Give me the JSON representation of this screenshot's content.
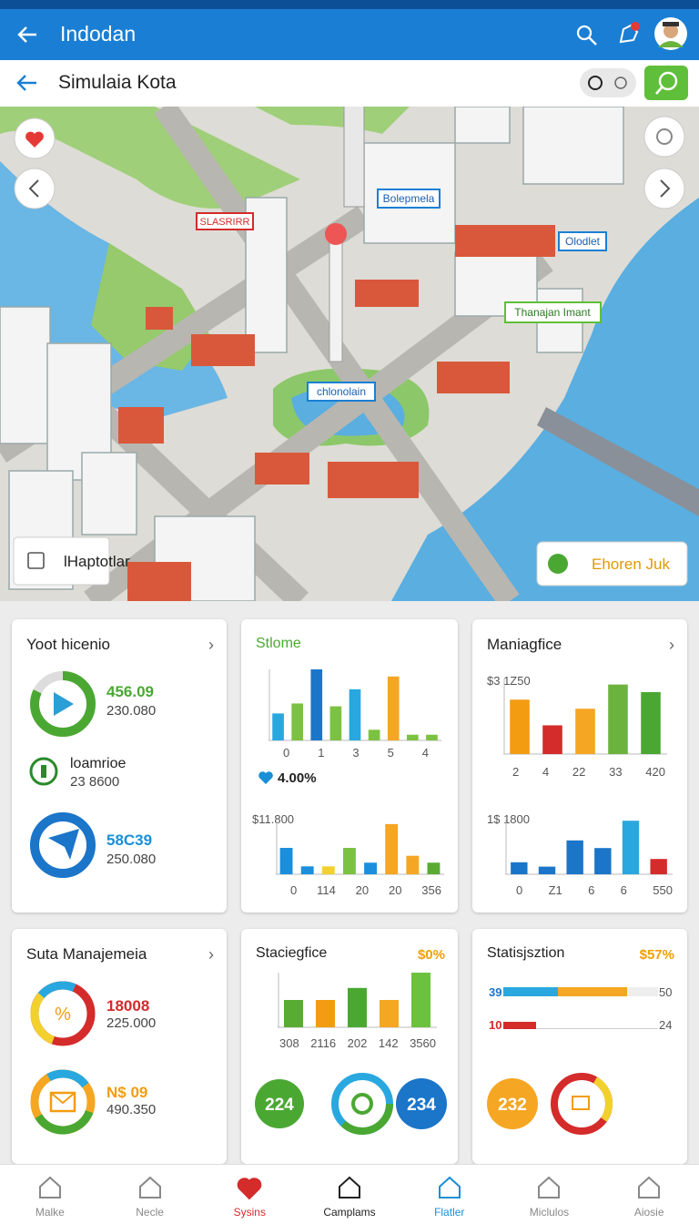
{
  "app_bar": {
    "title": "Indodan"
  },
  "header": {
    "title": "Simulaia Kota"
  },
  "map": {
    "labels": [
      "Bolepmela",
      "Olodlet",
      "SLASRIRR",
      "Thanajan Imant",
      "chlonolain"
    ],
    "left_button": "lHaptotlar",
    "right_button": "Ehoren Juk"
  },
  "cards": [
    {
      "title": "Yoot hicenio",
      "items": [
        {
          "value": "456.09",
          "sub": "230.080"
        },
        {
          "value": "loamrioe",
          "sub": "23 8600"
        },
        {
          "value": "58C39",
          "sub": "250.080"
        }
      ]
    },
    {
      "title": "Stlome",
      "stat": "4.00%",
      "charts": [
        {
          "bars": [
            {
              "value": 38,
              "color": "#29a8e0"
            },
            {
              "value": 52,
              "color": "#7cc242"
            },
            {
              "value": 100,
              "color": "#1b75c9"
            },
            {
              "value": 48,
              "color": "#7cc242"
            },
            {
              "value": 72,
              "color": "#29a8e0"
            },
            {
              "value": 15,
              "color": "#7cc242"
            },
            {
              "value": 90,
              "color": "#f5a623"
            },
            {
              "value": 8,
              "color": "#7cc242"
            },
            {
              "value": 8,
              "color": "#7cc242"
            }
          ],
          "labels": [
            "0",
            "1",
            "3",
            "5",
            "4"
          ]
        },
        {
          "caption": "$11.800",
          "bars": [
            {
              "value": 50,
              "color": "#1b8fdc"
            },
            {
              "value": 15,
              "color": "#1b8fdc"
            },
            {
              "value": 15,
              "color": "#f2d12e"
            },
            {
              "value": 50,
              "color": "#7cc242"
            },
            {
              "value": 22,
              "color": "#1b8fdc"
            },
            {
              "value": 95,
              "color": "#f5a623"
            },
            {
              "value": 35,
              "color": "#f5a623"
            },
            {
              "value": 22,
              "color": "#5aab32"
            }
          ],
          "labels": [
            "0",
            "114",
            "20",
            "20",
            "356"
          ]
        }
      ]
    },
    {
      "title": "Maniagfice",
      "charts": [
        {
          "caption": "$3 1Z50",
          "bars": [
            {
              "value": 72,
              "color": "#f39c12"
            },
            {
              "value": 38,
              "color": "#d42b2b"
            },
            {
              "value": 60,
              "color": "#f5a623"
            },
            {
              "value": 92,
              "color": "#6cb33e"
            },
            {
              "value": 82,
              "color": "#4aa832"
            }
          ],
          "labels": [
            "2",
            "4",
            "22",
            "33",
            "420"
          ]
        },
        {
          "caption": "1$ 1800",
          "bars": [
            {
              "value": 22,
              "color": "#1b75c9"
            },
            {
              "value": 14,
              "color": "#1b75c9"
            },
            {
              "value": 62,
              "color": "#1b75c9"
            },
            {
              "value": 48,
              "color": "#1b75c9"
            },
            {
              "value": 98,
              "color": "#29a8e0"
            },
            {
              "value": 28,
              "color": "#d42b2b"
            }
          ],
          "labels": [
            "0",
            "Z1",
            "6",
            "6",
            "550"
          ]
        }
      ]
    },
    {
      "title": "Suta Manajemeia",
      "items": [
        {
          "value": "18008",
          "sub": "225.000"
        },
        {
          "value": "N$ 09",
          "sub": "490.350"
        }
      ]
    },
    {
      "title": "Staciegfice",
      "badge": "$0%",
      "charts": [
        {
          "bars": [
            {
              "value": 50,
              "color": "#5aab32"
            },
            {
              "value": 50,
              "color": "#f39c12"
            },
            {
              "value": 72,
              "color": "#4aa832"
            },
            {
              "value": 50,
              "color": "#f5a623"
            },
            {
              "value": 100,
              "color": "#6cc23e"
            }
          ],
          "labels": [
            "308",
            "2116",
            "202",
            "142",
            "3560"
          ]
        }
      ],
      "circles": [
        "224",
        "234"
      ]
    },
    {
      "title": "Statisjsztion",
      "badge": "$57%",
      "rows": [
        {
          "label": "39",
          "end": "50"
        },
        {
          "label": "10",
          "end": "24"
        }
      ],
      "circles": [
        "232"
      ]
    }
  ],
  "nav": [
    "Malke",
    "Necle",
    "Sysins",
    "Camplams",
    "Flatler",
    "Miclulos",
    "Aiosie"
  ]
}
